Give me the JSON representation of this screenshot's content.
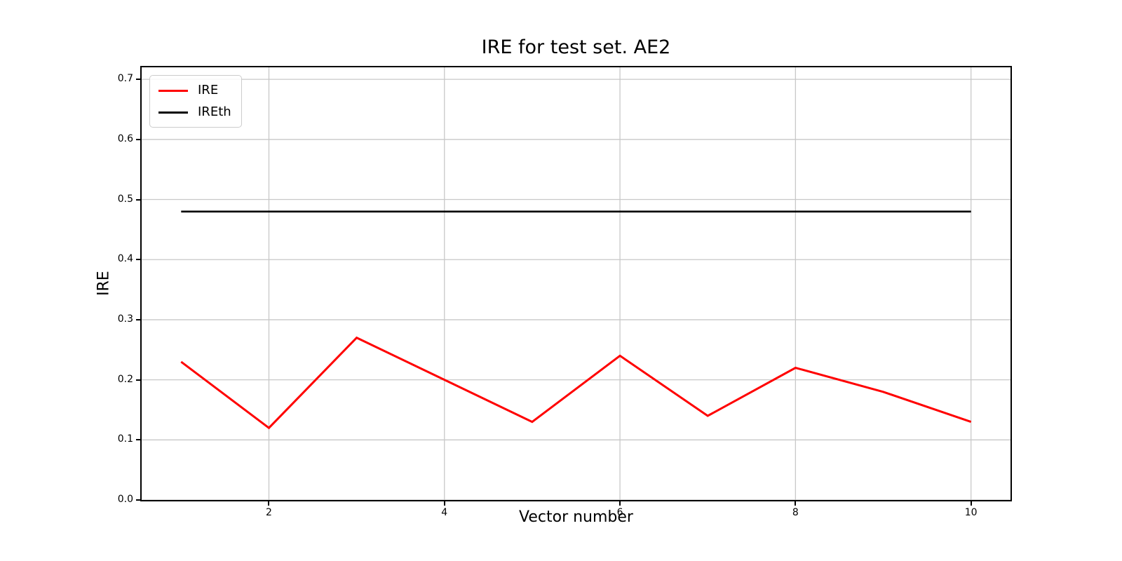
{
  "chart_data": {
    "type": "line",
    "title": "IRE for test set. AE2",
    "xlabel": "Vector number",
    "ylabel": "IRE",
    "x": [
      1,
      2,
      3,
      4,
      5,
      6,
      7,
      8,
      9,
      10
    ],
    "series": [
      {
        "name": "IRE",
        "color": "#ff0000",
        "values": [
          0.23,
          0.12,
          0.27,
          0.2,
          0.13,
          0.24,
          0.14,
          0.22,
          0.18,
          0.13
        ]
      },
      {
        "name": "IREth",
        "color": "#000000",
        "values": [
          0.48,
          0.48,
          0.48,
          0.48,
          0.48,
          0.48,
          0.48,
          0.48,
          0.48,
          0.48
        ]
      }
    ],
    "xlim": [
      0.55,
      10.45
    ],
    "ylim": [
      0.0,
      0.72
    ],
    "xticks": [
      2,
      4,
      6,
      8,
      10
    ],
    "yticks": [
      0.0,
      0.1,
      0.2,
      0.3,
      0.4,
      0.5,
      0.6,
      0.7
    ],
    "grid": true,
    "grid_color": "#c8c8c8",
    "background_color": "#ffffff",
    "legend_position": "upper left"
  }
}
